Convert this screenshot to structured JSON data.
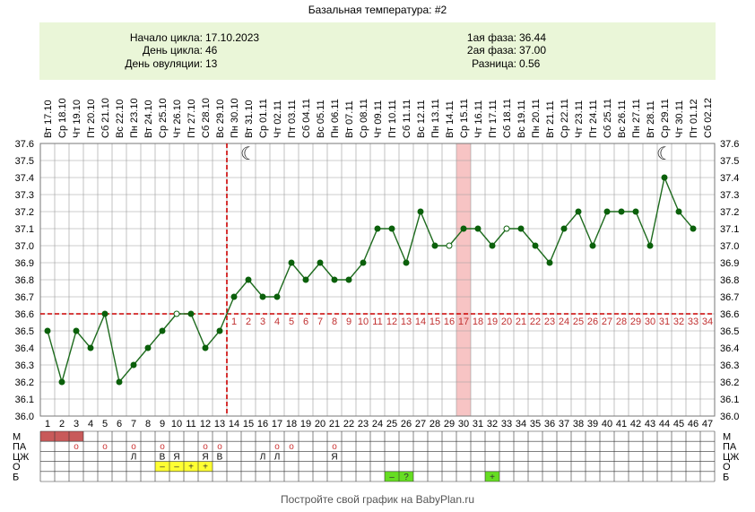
{
  "title": "Базальная температура: #2",
  "info": {
    "left": [
      {
        "label": "Начало цикла:",
        "value": "17.10.2023"
      },
      {
        "label": "День цикла:",
        "value": "46"
      },
      {
        "label": "День овуляции:",
        "value": "13"
      }
    ],
    "right": [
      {
        "label": "1ая фаза:",
        "value": "36.44"
      },
      {
        "label": "2ая фаза:",
        "value": "37.00"
      },
      {
        "label": "Разница:",
        "value": "0.56"
      }
    ]
  },
  "footer": "Постройте свой график на BabyPlan.ru",
  "colors": {
    "info_bg": "#eaf6d8",
    "line": "#1e6b1e",
    "point": "#0b600b",
    "grid": "#9a9a9a",
    "coverline": "#cc0000",
    "post_ovulation_numbers": "#c03030",
    "highlight": "#f7c4c4",
    "menstruation": "#c85a5a",
    "yellow": "#ffff33",
    "green": "#66dd22"
  },
  "chart_data": {
    "type": "line",
    "title": "Базальная температура: #2",
    "dates": [
      "Вт 17.10",
      "Ср 18.10",
      "Чт 19.10",
      "Пт 20.10",
      "Сб 21.10",
      "Вс 22.10",
      "Пн 23.10",
      "Вт 24.10",
      "Ср 25.10",
      "Чт 26.10",
      "Пт 27.10",
      "Сб 28.10",
      "Вс 29.10",
      "Пн 30.10",
      "Вт 31.10",
      "Ср 01.11",
      "Чт 02.11",
      "Пт 03.11",
      "Сб 04.11",
      "Вс 05.11",
      "Пн 06.11",
      "Вт 07.11",
      "Ср 08.11",
      "Чт 09.11",
      "Пт 10.11",
      "Сб 11.11",
      "Вс 12.11",
      "Пн 13.11",
      "Вт 14.11",
      "Ср 15.11",
      "Чт 16.11",
      "Пт 17.11",
      "Сб 18.11",
      "Вс 19.11",
      "Пн 20.11",
      "Вт 21.11",
      "Ср 22.11",
      "Чт 23.11",
      "Пт 24.11",
      "Сб 25.11",
      "Вс 26.11",
      "Пн 27.11",
      "Вт 28.11",
      "Ср 29.11",
      "Чт 30.11",
      "Пт 01.12",
      "Сб 02.12"
    ],
    "days": [
      "1",
      "2",
      "3",
      "4",
      "5",
      "6",
      "7",
      "8",
      "9",
      "10",
      "11",
      "12",
      "13",
      "14",
      "15",
      "16",
      "17",
      "18",
      "19",
      "20",
      "21",
      "22",
      "23",
      "24",
      "25",
      "26",
      "27",
      "28",
      "29",
      "30",
      "31",
      "32",
      "33",
      "34",
      "35",
      "36",
      "37",
      "38",
      "39",
      "40",
      "41",
      "42",
      "43",
      "44",
      "45",
      "46",
      "47"
    ],
    "temperatures": [
      36.5,
      36.2,
      36.5,
      36.4,
      36.6,
      36.2,
      36.3,
      36.4,
      36.5,
      36.6,
      36.6,
      36.4,
      36.5,
      36.7,
      36.8,
      36.7,
      36.7,
      36.9,
      36.8,
      36.9,
      36.8,
      36.8,
      36.9,
      37.1,
      37.1,
      36.9,
      37.2,
      37.0,
      37.0,
      37.1,
      37.1,
      37.0,
      37.1,
      37.1,
      37.0,
      36.9,
      37.1,
      37.2,
      37.0,
      37.2,
      37.2,
      37.2,
      37.0,
      37.4,
      37.2,
      37.1
    ],
    "open_points": [
      10,
      29,
      33
    ],
    "y_ticks": [
      "37.6",
      "37.5",
      "37.4",
      "37.3",
      "37.2",
      "37.1",
      "37.0",
      "36.9",
      "36.8",
      "36.7",
      "36.6",
      "36.5",
      "36.4",
      "36.3",
      "36.2",
      "36.1",
      "36.0"
    ],
    "ylim": [
      36.0,
      37.6
    ],
    "coverline": 36.6,
    "ovulation_day": 13,
    "post_ovulation_day_labels": [
      "1",
      "2",
      "3",
      "4",
      "5",
      "6",
      "7",
      "8",
      "9",
      "10",
      "11",
      "12",
      "13",
      "14",
      "15",
      "16",
      "17",
      "18",
      "19",
      "20",
      "21",
      "22",
      "23",
      "24",
      "25",
      "26",
      "27",
      "28",
      "29",
      "30",
      "31",
      "32",
      "33",
      "34"
    ],
    "highlight_day": 30,
    "moon_icons_days": [
      15,
      44
    ],
    "moon_glyph": "☾",
    "grid": true
  },
  "rows": {
    "labels": [
      "М",
      "ПА",
      "ЦЖ",
      "О",
      "Б"
    ],
    "menstruation_days": [
      1,
      2,
      3
    ],
    "pa": [
      {
        "day": 3,
        "text": "о"
      },
      {
        "day": 5,
        "text": "о"
      },
      {
        "day": 7,
        "text": "о"
      },
      {
        "day": 9,
        "text": "о"
      },
      {
        "day": 12,
        "text": "о"
      },
      {
        "day": 13,
        "text": "о"
      },
      {
        "day": 17,
        "text": "о"
      },
      {
        "day": 18,
        "text": "о"
      },
      {
        "day": 21,
        "text": "о"
      }
    ],
    "cz": [
      {
        "day": 7,
        "text": "Л"
      },
      {
        "day": 9,
        "text": "В"
      },
      {
        "day": 10,
        "text": "Я"
      },
      {
        "day": 12,
        "text": "Я"
      },
      {
        "day": 13,
        "text": "В"
      },
      {
        "day": 16,
        "text": "Л"
      },
      {
        "day": 17,
        "text": "Л"
      },
      {
        "day": 21,
        "text": "Я"
      }
    ],
    "o": [
      {
        "day": 9,
        "text": "–"
      },
      {
        "day": 10,
        "text": "–"
      },
      {
        "day": 11,
        "text": "+"
      },
      {
        "day": 12,
        "text": "+"
      }
    ],
    "b": [
      {
        "day": 25,
        "text": "–"
      },
      {
        "day": 26,
        "text": "?"
      },
      {
        "day": 32,
        "text": "+"
      }
    ]
  }
}
